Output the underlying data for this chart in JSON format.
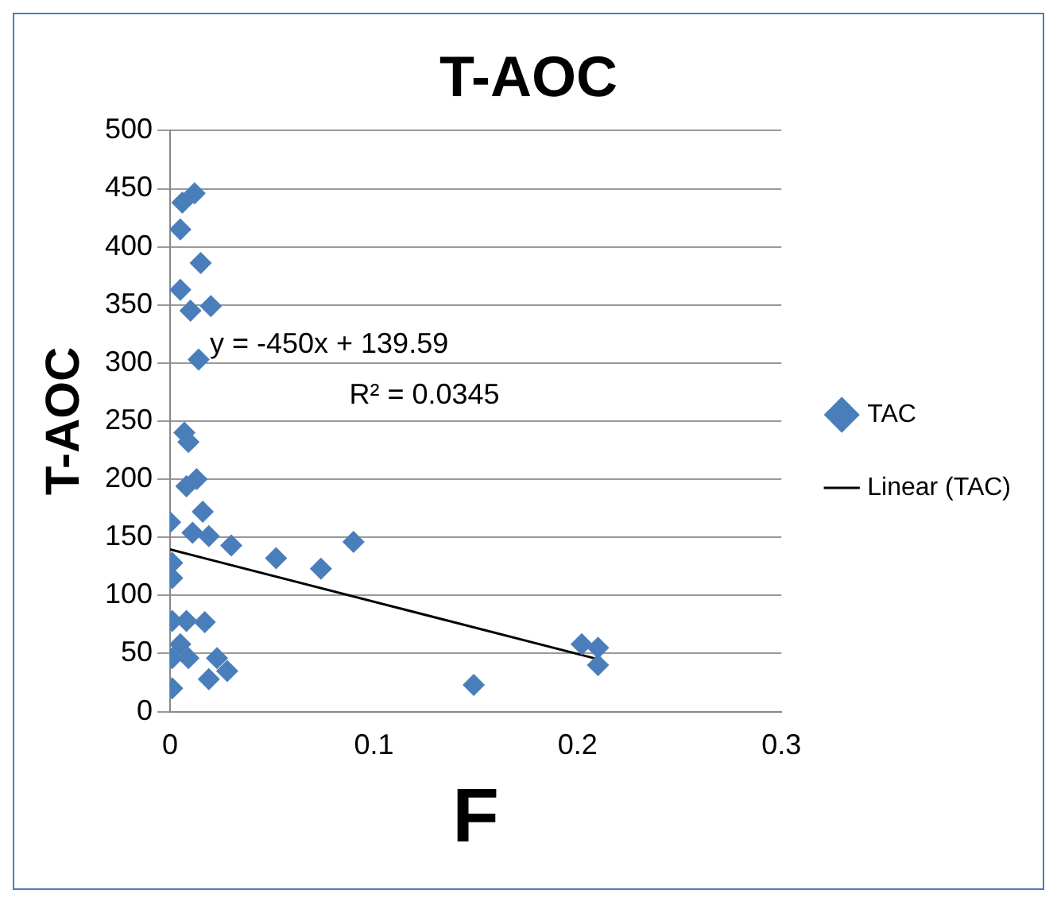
{
  "chart_data": {
    "type": "scatter",
    "title": "T-AOC",
    "xlabel": "F",
    "ylabel": "T-AOC",
    "xlim": [
      0,
      0.3
    ],
    "xticks": [
      0,
      0.1,
      0.2,
      0.3
    ],
    "ylim": [
      0,
      500
    ],
    "yticks": [
      0,
      50,
      100,
      150,
      200,
      250,
      300,
      350,
      400,
      450,
      500
    ],
    "grid": "y",
    "legend": "right",
    "marker": "diamond",
    "annotations": [
      "y = -450x + 139.59",
      "R² = 0.0345"
    ],
    "series": [
      {
        "name": "TAC",
        "color": "#4a7ebb",
        "x": [
          0.012,
          0.006,
          0.005,
          0.015,
          0.005,
          0.01,
          0.02,
          0.014,
          0.007,
          0.009,
          0.008,
          0.013,
          0.016,
          0,
          0.011,
          0.019,
          0.03,
          0.052,
          0.074,
          0.09,
          0.001,
          0.001,
          0.001,
          0.008,
          0.017,
          0.005,
          0.001,
          0.009,
          0.023,
          0.028,
          0.019,
          0.001,
          0.149,
          0.202,
          0.21,
          0.21
        ],
        "values": [
          446,
          438,
          415,
          386,
          363,
          345,
          349,
          303,
          240,
          232,
          194,
          200,
          172,
          163,
          154,
          151,
          143,
          132,
          123,
          146,
          128,
          115,
          78,
          78,
          77,
          58,
          46,
          46,
          46,
          35,
          28,
          20,
          23,
          58,
          55,
          40
        ]
      },
      {
        "name": "Linear (TAC)",
        "type": "line",
        "color": "#000000",
        "marker": "none",
        "x": [
          0,
          0.21
        ],
        "values": [
          139.6,
          45.1
        ]
      }
    ]
  }
}
